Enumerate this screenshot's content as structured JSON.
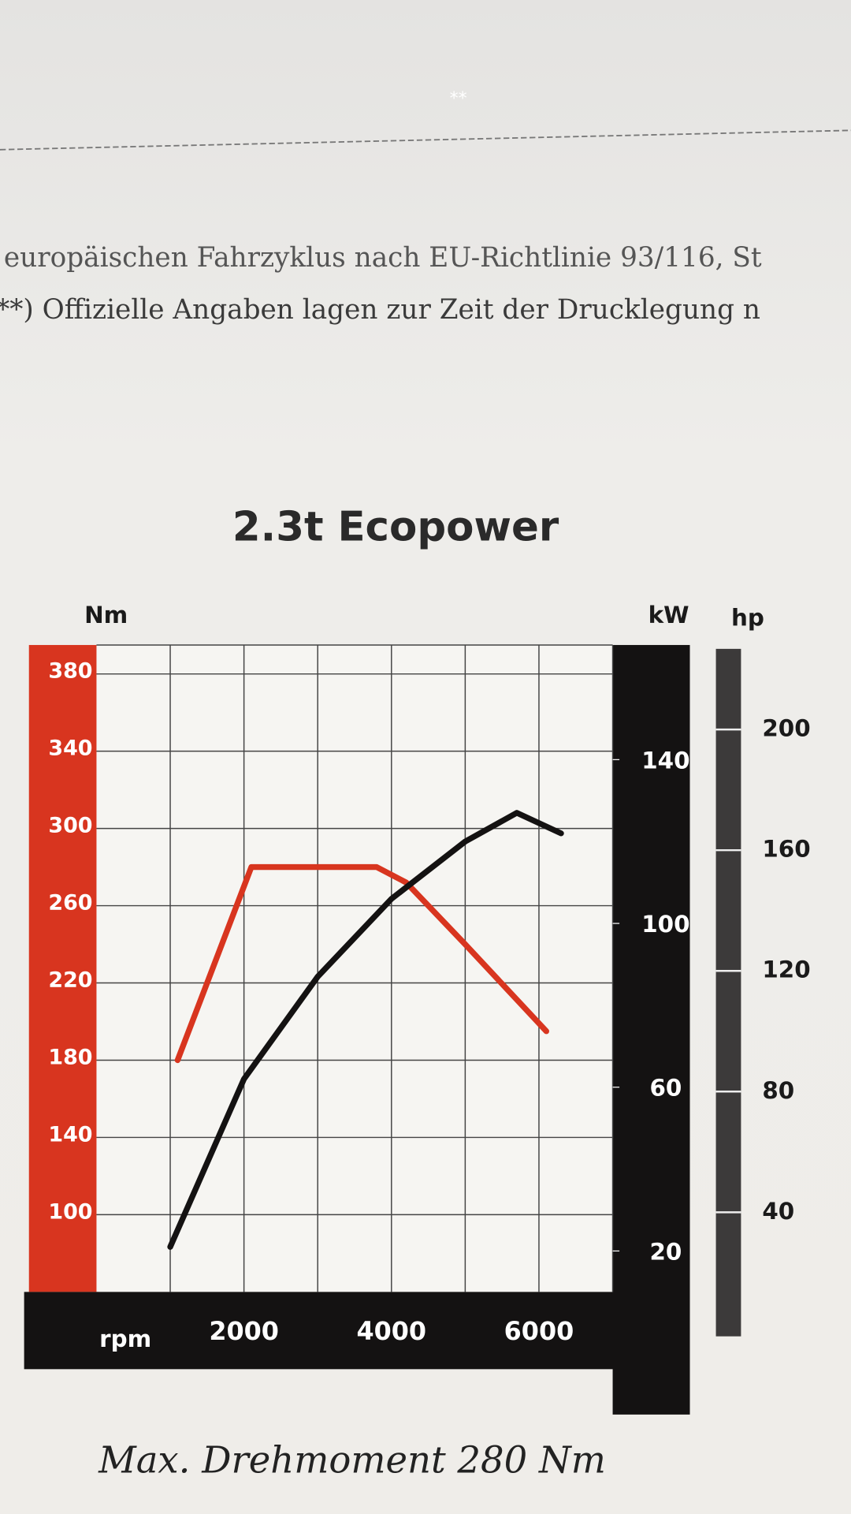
{
  "document": {
    "marker": "**",
    "footnotes": [
      "europäischen Fahrzyklus nach EU-Richtlinie 93/116, St",
      "**) Offizielle Angaben lagen zur Zeit der Drucklegung n"
    ],
    "caption": "Max. Drehmoment 280 Nm"
  },
  "chart_data": {
    "type": "line",
    "title": "2.3t Ecopower",
    "x_label": "rpm",
    "y_label": "Nm",
    "y2_label": "kW",
    "y3_label": "hp",
    "xlim": [
      0,
      7000
    ],
    "xticks": [
      2000,
      4000,
      6000
    ],
    "xgrid": [
      1000,
      3000,
      5000,
      7000
    ],
    "ylim": [
      60,
      395
    ],
    "yticks": [
      100,
      140,
      180,
      220,
      260,
      300,
      340,
      380
    ],
    "y2lim": [
      10,
      168
    ],
    "y2ticks": [
      20,
      60,
      100,
      140
    ],
    "y3lim": [
      13.6,
      228
    ],
    "y3ticks": [
      40,
      80,
      120,
      160,
      200
    ],
    "grid": true,
    "series": [
      {
        "name": "Nm",
        "color": "#d8351f",
        "axis": "y",
        "x": [
          1100,
          2100,
          3800,
          4200,
          5000,
          6100
        ],
        "values": [
          180,
          280,
          280,
          272,
          240,
          195
        ]
      },
      {
        "name": "kW",
        "color": "#141212",
        "axis": "y2",
        "x": [
          1000,
          2000,
          3000,
          4000,
          5000,
          5700,
          6300
        ],
        "values": [
          21,
          62,
          87,
          106,
          120,
          127,
          122
        ]
      }
    ]
  }
}
